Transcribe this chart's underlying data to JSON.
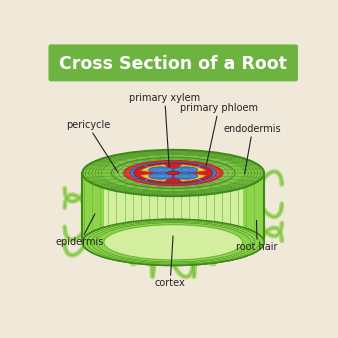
{
  "title": "Cross Section of a Root",
  "title_bg": "#6db33f",
  "title_color": "#ffffff",
  "bg_color": "#f0e8d8",
  "labels": {
    "primary_xylem": "primary xylem",
    "primary_phloem": "primary phloem",
    "pericycle": "pericycle",
    "endodermis": "endodermis",
    "epidermis": "epidermis",
    "cortex": "cortex",
    "root_hair": "root hair"
  },
  "colors": {
    "epidermis_outer": "#5aaa28",
    "epidermis_dark": "#3d8a18",
    "cortex_outer": "#7dc840",
    "cortex_cell": "#a8d96c",
    "cortex_cell_border": "#4a8c2a",
    "cortex_inner_fill": "#c8e8a0",
    "cylinder_body": "#8cd44a",
    "cylinder_inner": "#d4eea0",
    "cylinder_stripe": "#6ab830",
    "endodermis": "#8dc854",
    "endo_border": "#4a8c2a",
    "pericycle": "#e84040",
    "pericycle_border": "#c02020",
    "phloem_blue": "#5090d8",
    "phloem_border": "#2a5fa8",
    "xylem_red": "#d02020",
    "xylem_border": "#901010",
    "yellow": "#e8c840",
    "yellow_border": "#c0a020",
    "root_hair": "#a8d870",
    "root_hair_dark": "#6ab030",
    "label_line": "#222222",
    "label_text": "#222222"
  }
}
